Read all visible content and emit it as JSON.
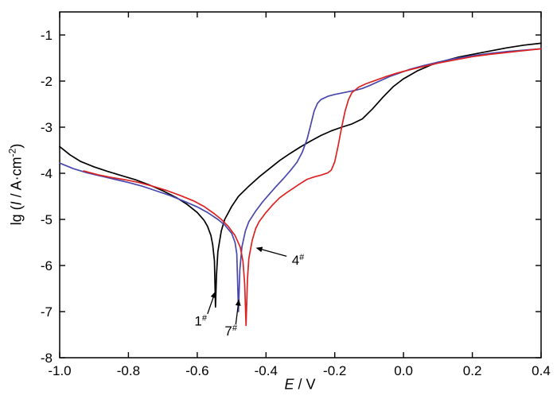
{
  "figure": {
    "background": "#ffffff",
    "frame_color": "#000000",
    "x_axis": {
      "label_italic": "E",
      "label_rest": " / V",
      "tick_labels": [
        "-1.0",
        "-0.8",
        "-0.6",
        "-0.4",
        "-0.2",
        "0.0",
        "0.2",
        "0.4"
      ]
    },
    "y_axis": {
      "label_prefix": "lg (",
      "label_italic": "I",
      "label_mid": " / A·cm",
      "label_sup": "-2",
      "label_suffix": ")",
      "tick_labels": [
        "-8",
        "-7",
        "-6",
        "-5",
        "-4",
        "-3",
        "-2",
        "-1"
      ]
    }
  },
  "chart_data": {
    "type": "line",
    "title": "",
    "xlabel": "E / V",
    "ylabel": "lg (I / A·cm^-2)",
    "xlim": [
      -1.0,
      0.4
    ],
    "ylim": [
      -8.0,
      -0.5
    ],
    "xticks": [
      -1.0,
      -0.8,
      -0.6,
      -0.4,
      -0.2,
      0.0,
      0.2,
      0.4
    ],
    "yticks": [
      -8,
      -7,
      -6,
      -5,
      -4,
      -3,
      -2,
      -1
    ],
    "grid": false,
    "legend_position": "none",
    "series": [
      {
        "name": "1#",
        "color": "#000000",
        "points": [
          [
            -1.0,
            -3.42
          ],
          [
            -0.97,
            -3.6
          ],
          [
            -0.94,
            -3.74
          ],
          [
            -0.9,
            -3.86
          ],
          [
            -0.86,
            -3.96
          ],
          [
            -0.82,
            -4.05
          ],
          [
            -0.78,
            -4.14
          ],
          [
            -0.74,
            -4.25
          ],
          [
            -0.7,
            -4.38
          ],
          [
            -0.66,
            -4.53
          ],
          [
            -0.63,
            -4.67
          ],
          [
            -0.6,
            -4.85
          ],
          [
            -0.58,
            -5.02
          ],
          [
            -0.57,
            -5.15
          ],
          [
            -0.56,
            -5.35
          ],
          [
            -0.555,
            -5.55
          ],
          [
            -0.55,
            -5.9
          ],
          [
            -0.547,
            -6.9
          ],
          [
            -0.544,
            -6.2
          ],
          [
            -0.54,
            -5.7
          ],
          [
            -0.53,
            -5.25
          ],
          [
            -0.52,
            -5.0
          ],
          [
            -0.5,
            -4.72
          ],
          [
            -0.48,
            -4.5
          ],
          [
            -0.45,
            -4.28
          ],
          [
            -0.42,
            -4.08
          ],
          [
            -0.39,
            -3.9
          ],
          [
            -0.36,
            -3.72
          ],
          [
            -0.33,
            -3.57
          ],
          [
            -0.3,
            -3.43
          ],
          [
            -0.27,
            -3.3
          ],
          [
            -0.24,
            -3.18
          ],
          [
            -0.21,
            -3.08
          ],
          [
            -0.18,
            -3.0
          ],
          [
            -0.15,
            -2.93
          ],
          [
            -0.12,
            -2.82
          ],
          [
            -0.09,
            -2.6
          ],
          [
            -0.06,
            -2.35
          ],
          [
            -0.03,
            -2.12
          ],
          [
            0.0,
            -1.95
          ],
          [
            0.04,
            -1.78
          ],
          [
            0.08,
            -1.65
          ],
          [
            0.12,
            -1.56
          ],
          [
            0.16,
            -1.48
          ],
          [
            0.2,
            -1.42
          ],
          [
            0.25,
            -1.35
          ],
          [
            0.3,
            -1.28
          ],
          [
            0.35,
            -1.22
          ],
          [
            0.4,
            -1.18
          ]
        ]
      },
      {
        "name": "7#",
        "color": "#4747ad",
        "points": [
          [
            -1.0,
            -3.78
          ],
          [
            -0.96,
            -3.9
          ],
          [
            -0.92,
            -3.99
          ],
          [
            -0.88,
            -4.06
          ],
          [
            -0.84,
            -4.13
          ],
          [
            -0.8,
            -4.2
          ],
          [
            -0.76,
            -4.28
          ],
          [
            -0.72,
            -4.38
          ],
          [
            -0.68,
            -4.48
          ],
          [
            -0.64,
            -4.6
          ],
          [
            -0.6,
            -4.73
          ],
          [
            -0.57,
            -4.85
          ],
          [
            -0.54,
            -5.0
          ],
          [
            -0.52,
            -5.12
          ],
          [
            -0.5,
            -5.3
          ],
          [
            -0.49,
            -5.5
          ],
          [
            -0.485,
            -5.75
          ],
          [
            -0.48,
            -7.0
          ],
          [
            -0.476,
            -6.1
          ],
          [
            -0.47,
            -5.6
          ],
          [
            -0.46,
            -5.25
          ],
          [
            -0.45,
            -5.05
          ],
          [
            -0.43,
            -4.82
          ],
          [
            -0.41,
            -4.62
          ],
          [
            -0.39,
            -4.45
          ],
          [
            -0.37,
            -4.28
          ],
          [
            -0.35,
            -4.12
          ],
          [
            -0.33,
            -3.95
          ],
          [
            -0.31,
            -3.76
          ],
          [
            -0.295,
            -3.55
          ],
          [
            -0.28,
            -3.25
          ],
          [
            -0.27,
            -2.95
          ],
          [
            -0.26,
            -2.65
          ],
          [
            -0.25,
            -2.48
          ],
          [
            -0.24,
            -2.4
          ],
          [
            -0.22,
            -2.33
          ],
          [
            -0.2,
            -2.29
          ],
          [
            -0.18,
            -2.26
          ],
          [
            -0.16,
            -2.23
          ],
          [
            -0.14,
            -2.2
          ],
          [
            -0.12,
            -2.16
          ],
          [
            -0.1,
            -2.1
          ],
          [
            -0.07,
            -2.0
          ],
          [
            -0.04,
            -1.9
          ],
          [
            -0.01,
            -1.82
          ],
          [
            0.02,
            -1.74
          ],
          [
            0.06,
            -1.66
          ],
          [
            0.1,
            -1.59
          ],
          [
            0.15,
            -1.51
          ],
          [
            0.2,
            -1.45
          ],
          [
            0.25,
            -1.4
          ],
          [
            0.3,
            -1.36
          ],
          [
            0.35,
            -1.33
          ],
          [
            0.4,
            -1.3
          ]
        ]
      },
      {
        "name": "4#",
        "color": "#dd2222",
        "points": [
          [
            -0.93,
            -3.95
          ],
          [
            -0.89,
            -4.03
          ],
          [
            -0.85,
            -4.09
          ],
          [
            -0.81,
            -4.14
          ],
          [
            -0.77,
            -4.2
          ],
          [
            -0.73,
            -4.28
          ],
          [
            -0.69,
            -4.37
          ],
          [
            -0.65,
            -4.48
          ],
          [
            -0.61,
            -4.6
          ],
          [
            -0.58,
            -4.72
          ],
          [
            -0.55,
            -4.88
          ],
          [
            -0.53,
            -5.0
          ],
          [
            -0.51,
            -5.15
          ],
          [
            -0.49,
            -5.35
          ],
          [
            -0.475,
            -5.6
          ],
          [
            -0.467,
            -5.9
          ],
          [
            -0.462,
            -6.4
          ],
          [
            -0.458,
            -7.3
          ],
          [
            -0.454,
            -6.3
          ],
          [
            -0.45,
            -5.85
          ],
          [
            -0.44,
            -5.45
          ],
          [
            -0.43,
            -5.2
          ],
          [
            -0.42,
            -5.05
          ],
          [
            -0.4,
            -4.85
          ],
          [
            -0.38,
            -4.68
          ],
          [
            -0.36,
            -4.53
          ],
          [
            -0.34,
            -4.42
          ],
          [
            -0.32,
            -4.32
          ],
          [
            -0.3,
            -4.22
          ],
          [
            -0.28,
            -4.13
          ],
          [
            -0.26,
            -4.08
          ],
          [
            -0.24,
            -4.04
          ],
          [
            -0.22,
            -3.99
          ],
          [
            -0.21,
            -3.93
          ],
          [
            -0.2,
            -3.75
          ],
          [
            -0.19,
            -3.4
          ],
          [
            -0.18,
            -3.0
          ],
          [
            -0.17,
            -2.65
          ],
          [
            -0.16,
            -2.4
          ],
          [
            -0.15,
            -2.25
          ],
          [
            -0.13,
            -2.13
          ],
          [
            -0.11,
            -2.06
          ],
          [
            -0.08,
            -1.98
          ],
          [
            -0.05,
            -1.9
          ],
          [
            -0.02,
            -1.83
          ],
          [
            0.02,
            -1.75
          ],
          [
            0.06,
            -1.68
          ],
          [
            0.1,
            -1.61
          ],
          [
            0.15,
            -1.54
          ],
          [
            0.2,
            -1.47
          ],
          [
            0.25,
            -1.42
          ],
          [
            0.3,
            -1.38
          ],
          [
            0.35,
            -1.34
          ],
          [
            0.4,
            -1.3
          ]
        ]
      }
    ],
    "annotations": [
      {
        "label": "1",
        "sup": "#",
        "anchor": "middle",
        "text_at": [
          -0.59,
          -7.3
        ],
        "arrow_from": [
          -0.57,
          -7.05
        ],
        "arrow_to": [
          -0.548,
          -6.58
        ]
      },
      {
        "label": "7",
        "sup": "#",
        "anchor": "middle",
        "text_at": [
          -0.502,
          -7.52
        ],
        "arrow_from": [
          -0.488,
          -7.28
        ],
        "arrow_to": [
          -0.479,
          -6.75
        ]
      },
      {
        "label": "4",
        "sup": "#",
        "anchor": "start",
        "text_at": [
          -0.325,
          -5.98
        ],
        "arrow_from": [
          -0.34,
          -5.8
        ],
        "arrow_to": [
          -0.427,
          -5.62
        ]
      }
    ]
  }
}
